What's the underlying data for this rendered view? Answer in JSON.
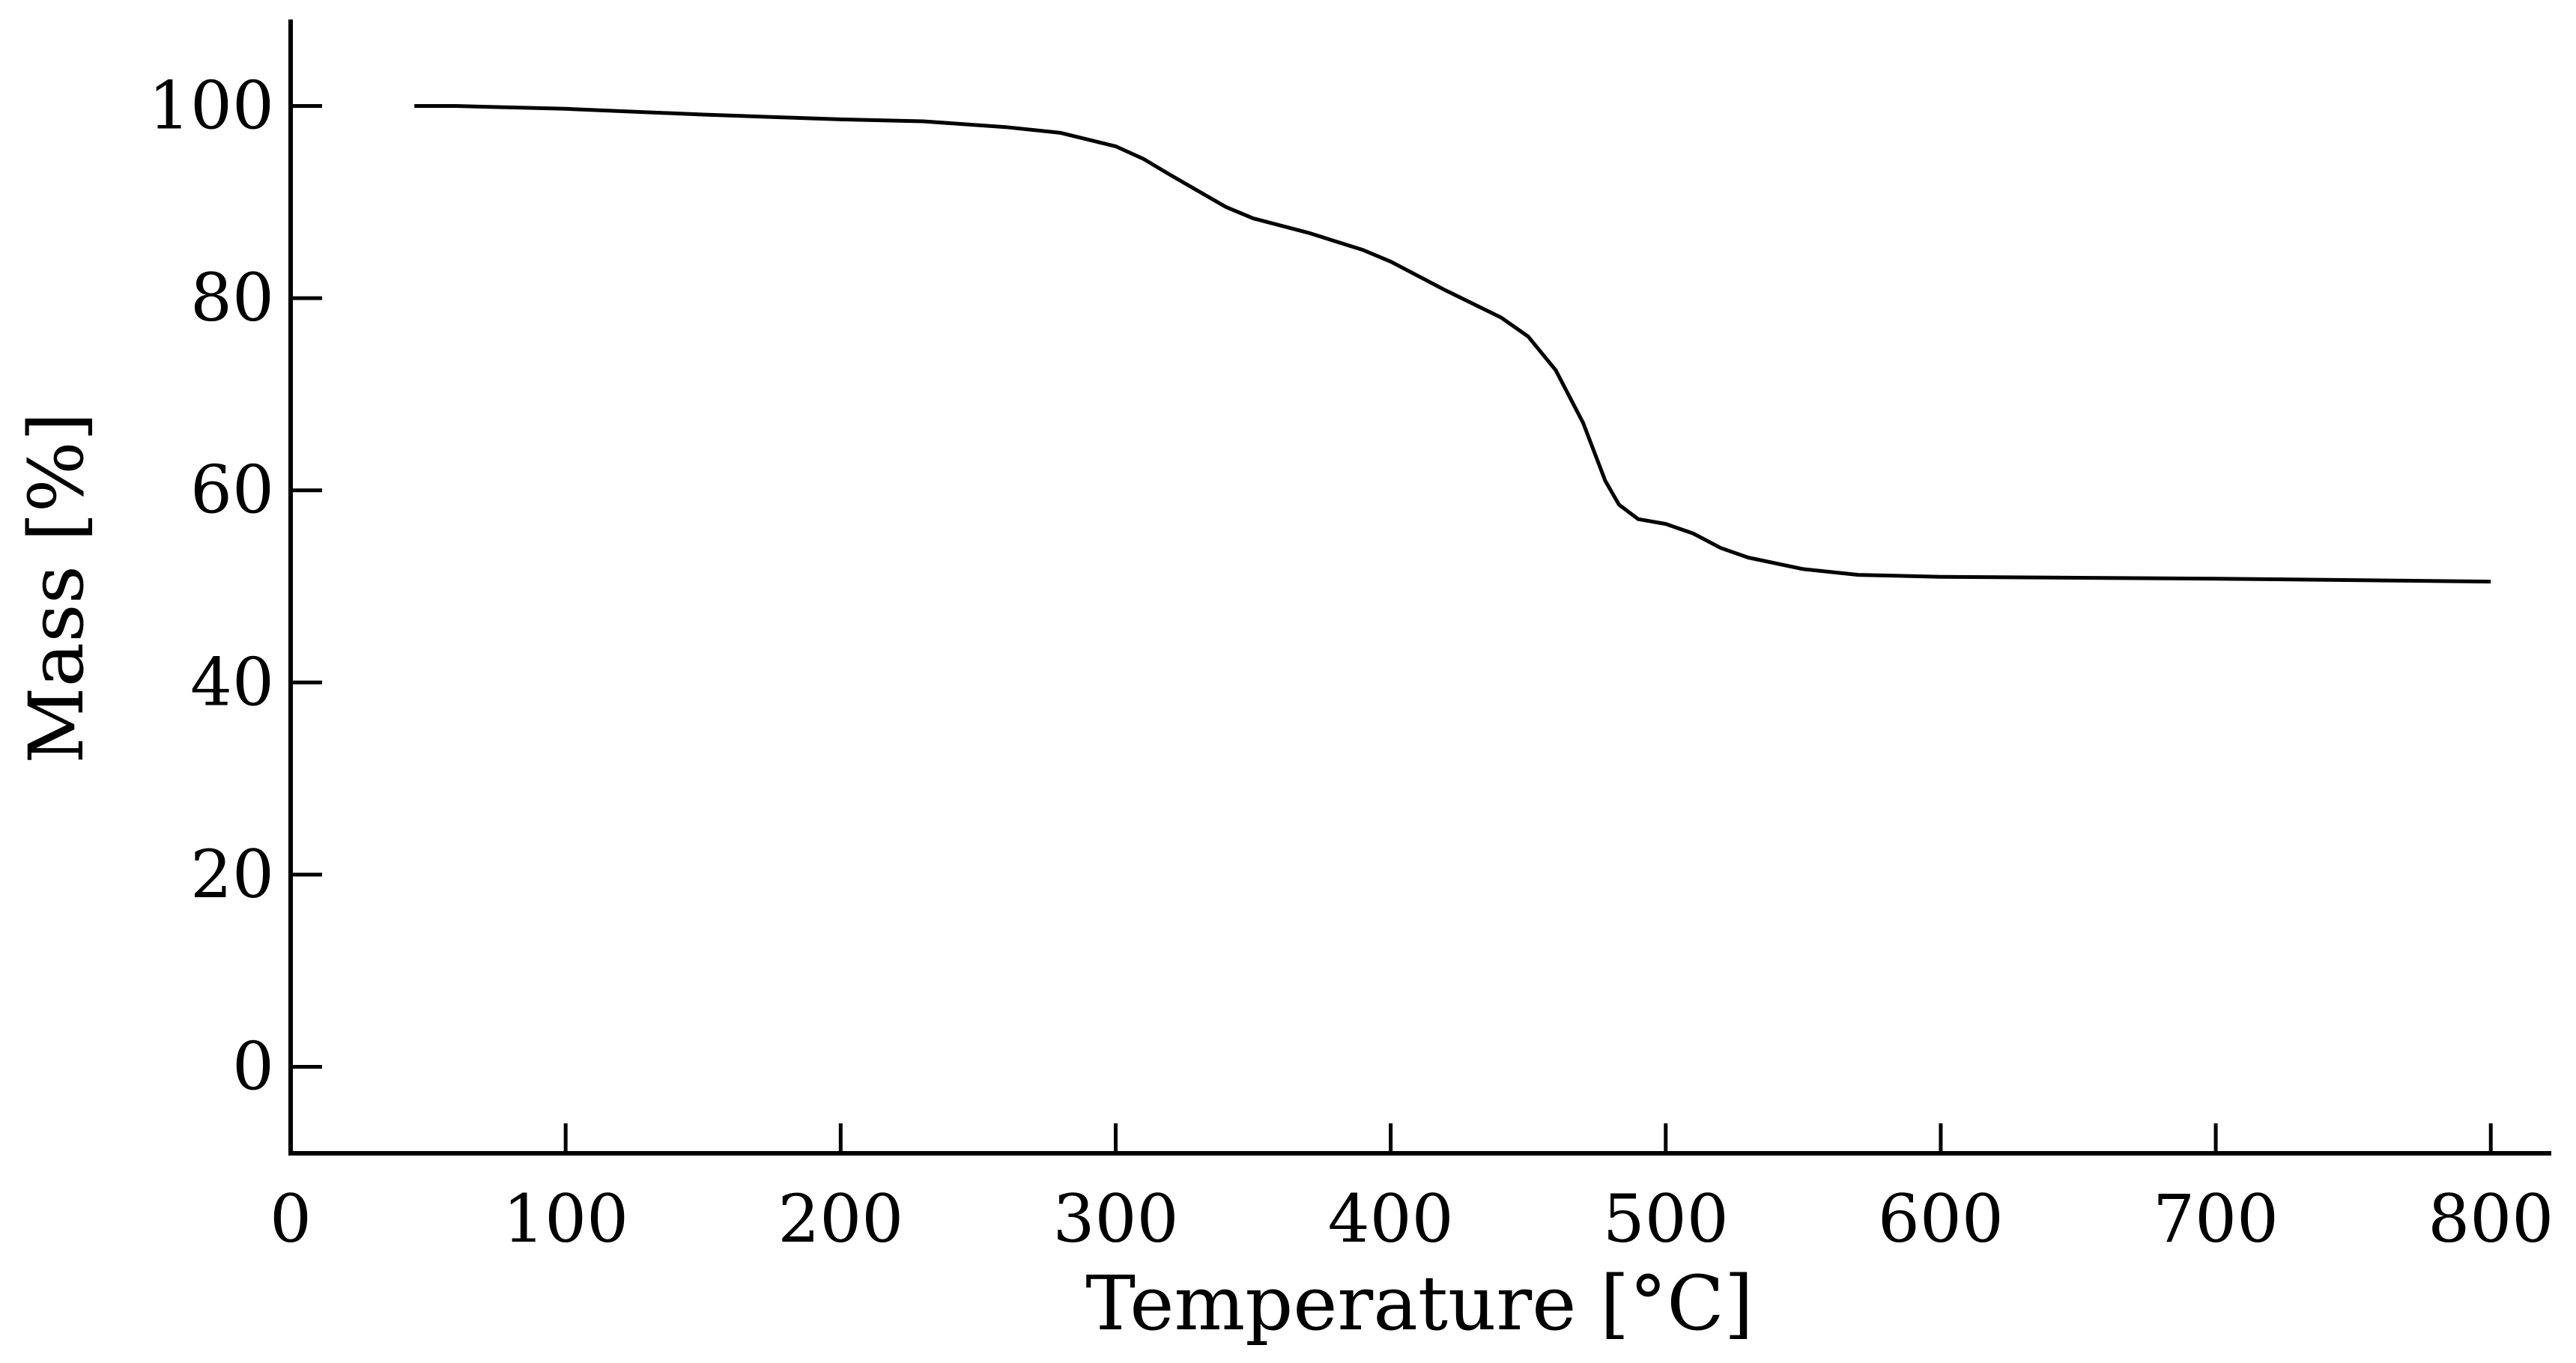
{
  "chart_data": {
    "type": "line",
    "title": "",
    "xlabel": "Temperature [°C]",
    "ylabel": "Mass [%]",
    "xlim": [
      0,
      822
    ],
    "ylim": [
      -9,
      109
    ],
    "xticks": [
      0,
      100,
      200,
      300,
      400,
      500,
      600,
      700,
      800
    ],
    "yticks": [
      0,
      20,
      40,
      60,
      80,
      100
    ],
    "grid": false,
    "series": [
      {
        "name": "Mass",
        "color": "#000000",
        "x": [
          45,
          60,
          100,
          150,
          200,
          230,
          260,
          280,
          300,
          310,
          320,
          340,
          350,
          370,
          390,
          400,
          420,
          440,
          450,
          460,
          470,
          478,
          483,
          490,
          500,
          510,
          520,
          530,
          550,
          570,
          600,
          700,
          800
        ],
        "y": [
          100,
          100,
          99.7,
          99.1,
          98.6,
          98.4,
          97.8,
          97.2,
          95.8,
          94.5,
          92.8,
          89.5,
          88.3,
          86.8,
          85,
          83.8,
          80.8,
          78,
          76,
          72.5,
          67,
          61,
          58.5,
          57,
          56.5,
          55.5,
          54,
          53,
          51.8,
          51.2,
          51,
          50.8,
          50.5
        ]
      }
    ]
  }
}
